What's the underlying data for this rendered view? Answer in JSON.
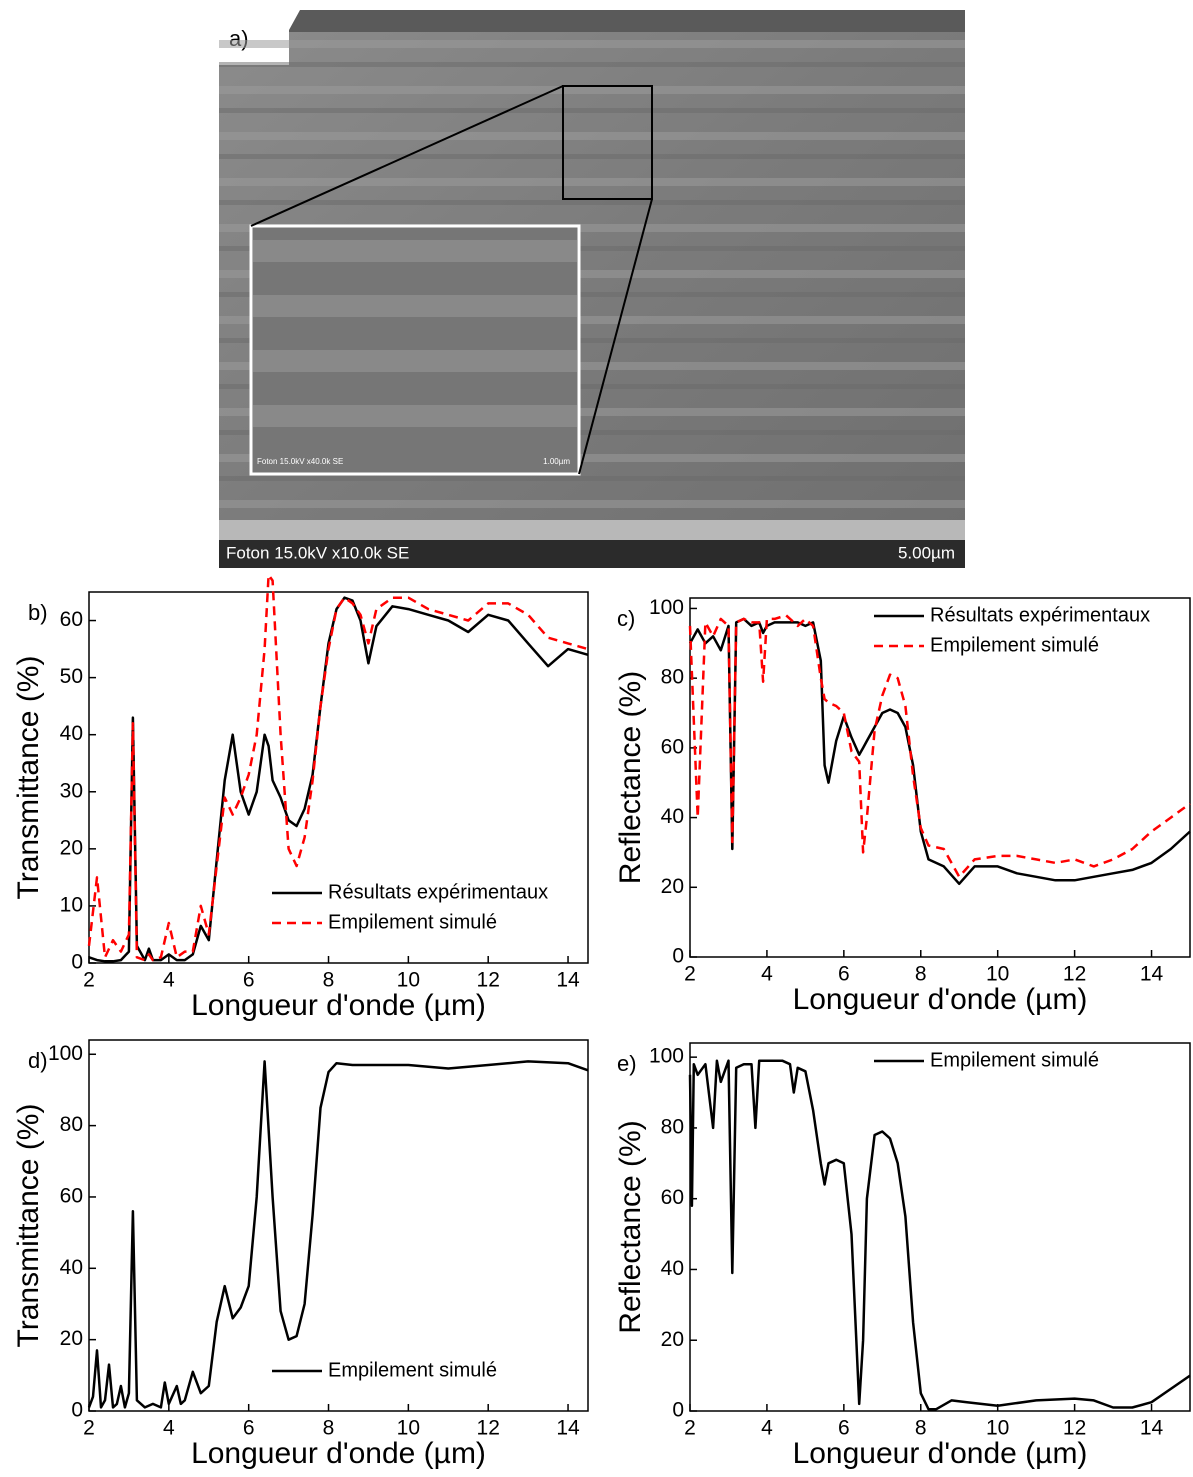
{
  "image": {
    "label": "a)",
    "caption": "Foton 15.0kV x10.0k SE",
    "scale": "5.00µm",
    "inset_caption": "Foton 15.0kV x40.0k SE",
    "inset_scale": "1.00µm"
  },
  "chart_data": [
    {
      "type": "line",
      "label": "b)",
      "ylabel": "Transmittance (%)",
      "xlabel": "Longueur d'onde (µm)",
      "legend": "lower right",
      "xlim": [
        2,
        14.5
      ],
      "xticks": [
        2,
        4,
        6,
        8,
        10,
        12,
        14
      ],
      "ylim": [
        0,
        65
      ],
      "yticks": [
        0,
        10,
        20,
        30,
        40,
        50,
        60
      ],
      "x": [
        2.0,
        2.2,
        2.4,
        2.6,
        2.8,
        3.0,
        3.1,
        3.2,
        3.4,
        3.5,
        3.6,
        3.8,
        4.0,
        4.2,
        4.4,
        4.6,
        4.8,
        5.0,
        5.2,
        5.4,
        5.6,
        5.8,
        6.0,
        6.2,
        6.4,
        6.5,
        6.6,
        6.8,
        7.0,
        7.2,
        7.4,
        7.6,
        7.8,
        8.0,
        8.2,
        8.4,
        8.6,
        8.8,
        9.0,
        9.2,
        9.6,
        10,
        10.5,
        11,
        11.5,
        12,
        12.5,
        13,
        13.5,
        14,
        14.5
      ],
      "series": [
        {
          "name": "Résultats expérimentaux",
          "color": "#000000",
          "style": "solid",
          "values": [
            1,
            0.5,
            0.3,
            0.3,
            0.5,
            2,
            43,
            3,
            0.5,
            2.5,
            0.5,
            0.5,
            1.5,
            0.5,
            0.5,
            1.5,
            6.5,
            4,
            18,
            32,
            40,
            30,
            26,
            30,
            40,
            38,
            32,
            29,
            25,
            24,
            27,
            33,
            45,
            56,
            62,
            64,
            63.5,
            60,
            52.5,
            59,
            62.5,
            62,
            61,
            60,
            58,
            61,
            60,
            56,
            52,
            55,
            54
          ]
        },
        {
          "name": "Empilement simulé",
          "color": "#ff0000",
          "style": "dashed",
          "values": [
            3,
            15,
            1,
            4,
            2,
            5,
            42,
            1,
            0.5,
            1.5,
            0.5,
            1,
            7,
            1,
            2,
            2,
            10,
            5,
            17,
            29,
            26,
            29,
            33,
            40,
            55,
            68,
            67,
            40,
            20,
            17,
            22,
            32,
            45,
            55,
            62,
            64,
            63,
            61,
            56,
            62,
            64,
            64,
            62,
            61,
            60,
            63,
            63,
            61,
            57,
            56,
            55
          ]
        }
      ]
    },
    {
      "type": "line",
      "label": "c)",
      "ylabel": "Reflectance (%)",
      "xlabel": "Longueur d'onde (µm)",
      "legend": "upper right",
      "xlim": [
        2,
        15
      ],
      "xticks": [
        2,
        4,
        6,
        8,
        10,
        12,
        14
      ],
      "ylim": [
        0,
        103
      ],
      "yticks": [
        0,
        20,
        40,
        60,
        80,
        100
      ],
      "x": [
        2.0,
        2.2,
        2.4,
        2.6,
        2.8,
        3.0,
        3.1,
        3.2,
        3.4,
        3.6,
        3.8,
        3.9,
        4.0,
        4.2,
        4.5,
        4.8,
        5.0,
        5.2,
        5.4,
        5.5,
        5.6,
        5.8,
        6.0,
        6.2,
        6.4,
        6.5,
        6.6,
        6.8,
        7.0,
        7.2,
        7.4,
        7.6,
        7.8,
        8.0,
        8.2,
        8.6,
        9.0,
        9.4,
        10,
        10.5,
        11,
        11.5,
        12,
        12.5,
        13,
        13.5,
        14,
        14.5,
        15
      ],
      "series": [
        {
          "name": "Résultats expérimentaux",
          "color": "#000000",
          "style": "solid",
          "values": [
            90,
            94,
            90,
            92,
            88,
            95,
            31,
            96,
            97,
            95,
            96,
            93,
            95,
            96,
            96,
            96,
            95,
            96,
            85,
            55,
            50,
            62,
            69,
            63,
            58,
            60,
            62,
            66,
            70,
            71,
            70,
            66,
            55,
            36,
            28,
            26,
            21,
            26,
            26,
            24,
            23,
            22,
            22,
            23,
            24,
            25,
            27,
            31,
            36
          ]
        },
        {
          "name": "Empilement simulé",
          "color": "#ff0000",
          "style": "dashed",
          "values": [
            95,
            40,
            96,
            92,
            97,
            95,
            33,
            96,
            97,
            96,
            96,
            79,
            97,
            97,
            98,
            95,
            97,
            95,
            80,
            74,
            73,
            72,
            70,
            59,
            56,
            30,
            40,
            65,
            75,
            81,
            80,
            72,
            52,
            37,
            32,
            31,
            23,
            28,
            29,
            29,
            28,
            27,
            28,
            26,
            28,
            31,
            36,
            40,
            44
          ]
        }
      ]
    },
    {
      "type": "line",
      "label": "d)",
      "ylabel": "Transmittance (%)",
      "xlabel": "Longueur d'onde (µm)",
      "legend": "lower right",
      "xlim": [
        2,
        14.5
      ],
      "xticks": [
        2,
        4,
        6,
        8,
        10,
        12,
        14
      ],
      "ylim": [
        0,
        104
      ],
      "yticks": [
        0,
        20,
        40,
        60,
        80,
        100
      ],
      "x": [
        2.0,
        2.1,
        2.2,
        2.3,
        2.4,
        2.5,
        2.6,
        2.7,
        2.8,
        2.9,
        3.0,
        3.1,
        3.2,
        3.4,
        3.6,
        3.8,
        3.9,
        4.0,
        4.2,
        4.3,
        4.4,
        4.6,
        4.8,
        5.0,
        5.2,
        5.4,
        5.6,
        5.8,
        6.0,
        6.2,
        6.4,
        6.6,
        6.8,
        7.0,
        7.2,
        7.4,
        7.6,
        7.8,
        8.0,
        8.2,
        8.6,
        9,
        10,
        11,
        12,
        13,
        14,
        14.5
      ],
      "series": [
        {
          "name": "Empilement simulé",
          "color": "#000000",
          "style": "solid",
          "values": [
            1,
            4,
            17,
            1,
            3,
            13,
            1,
            2,
            7,
            1,
            5,
            56,
            3,
            1,
            2,
            1,
            8,
            2,
            7,
            2,
            3,
            11,
            5,
            7,
            25,
            35,
            26,
            29,
            35,
            60,
            98,
            60,
            28,
            20,
            21,
            30,
            55,
            85,
            95,
            97.5,
            97,
            97,
            97,
            96,
            97,
            98,
            97.5,
            95.5
          ]
        }
      ]
    },
    {
      "type": "line",
      "label": "e)",
      "ylabel": "Reflectance (%)",
      "xlabel": "Longueur d'onde (µm)",
      "legend": "upper right",
      "xlim": [
        2,
        15
      ],
      "xticks": [
        2,
        4,
        6,
        8,
        10,
        12,
        14
      ],
      "ylim": [
        0,
        104
      ],
      "yticks": [
        0,
        20,
        40,
        60,
        80,
        100
      ],
      "x": [
        2.0,
        2.05,
        2.1,
        2.2,
        2.4,
        2.6,
        2.7,
        2.8,
        3.0,
        3.1,
        3.2,
        3.4,
        3.6,
        3.7,
        3.8,
        4.0,
        4.4,
        4.6,
        4.7,
        4.8,
        5.0,
        5.2,
        5.4,
        5.5,
        5.6,
        5.8,
        6.0,
        6.2,
        6.4,
        6.5,
        6.6,
        6.8,
        7.0,
        7.2,
        7.4,
        7.6,
        7.8,
        8.0,
        8.2,
        8.4,
        8.8,
        9.2,
        10,
        11,
        12,
        12.5,
        13,
        13.5,
        14,
        15
      ],
      "series": [
        {
          "name": "Empilement simulé",
          "color": "#000000",
          "style": "solid",
          "values": [
            95,
            58,
            98,
            95,
            98,
            80,
            99,
            93,
            99,
            39,
            97,
            98,
            98,
            80,
            99,
            99,
            99,
            98,
            90,
            97,
            96,
            85,
            70,
            64,
            70,
            71,
            70,
            50,
            2,
            20,
            60,
            78,
            79,
            77,
            70,
            55,
            25,
            5,
            0.5,
            0.5,
            3,
            2.5,
            1.5,
            3,
            3.5,
            3,
            1,
            1,
            2.5,
            10
          ]
        }
      ]
    }
  ]
}
